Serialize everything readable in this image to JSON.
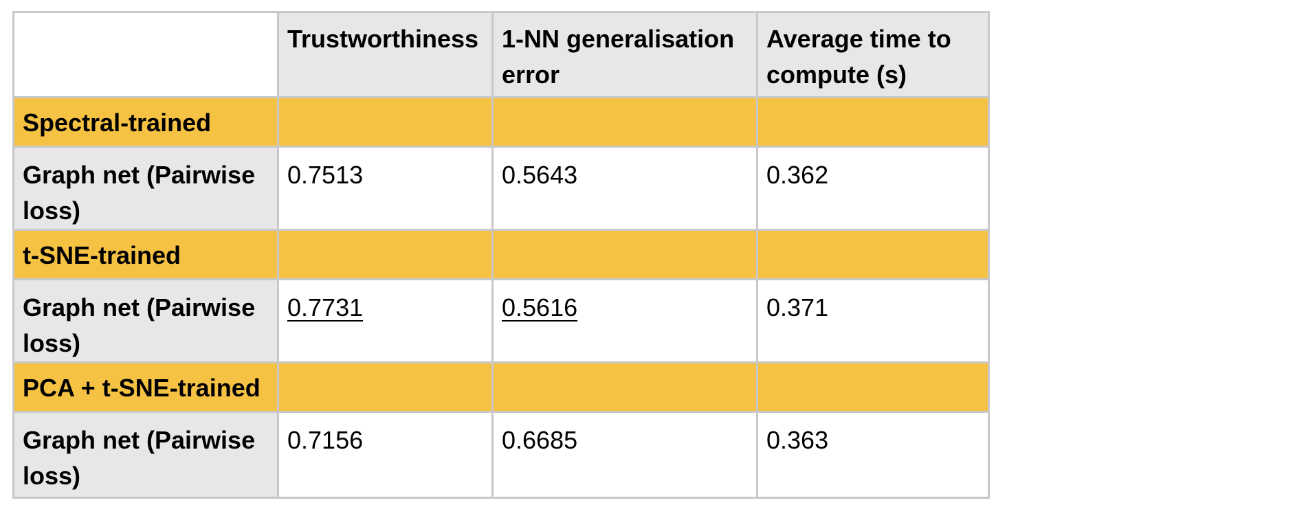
{
  "table": {
    "headers": {
      "trustworthiness": "Trustworthiness",
      "nn_error": "1-NN generalisation error",
      "time": "Average time to compute (s)"
    },
    "groups": [
      {
        "label": "Spectral-trained",
        "row": {
          "label": "Graph net (Pairwise loss)",
          "trustworthiness": "0.7513",
          "nn_error": "0.5643",
          "time": "0.362"
        }
      },
      {
        "label": "t-SNE-trained",
        "row": {
          "label": "Graph net (Pairwise loss)",
          "trustworthiness": "0.7731",
          "nn_error": "0.5616",
          "time": "0.371"
        }
      },
      {
        "label": "PCA + t-SNE-trained",
        "row": {
          "label": "Graph net (Pairwise loss)",
          "trustworthiness": "0.7156",
          "nn_error": "0.6685",
          "time": "0.363"
        }
      }
    ],
    "colors": {
      "header_bg": "#e7e7e7",
      "group_bg": "#f6c244",
      "border": "#c8c8c8"
    }
  }
}
